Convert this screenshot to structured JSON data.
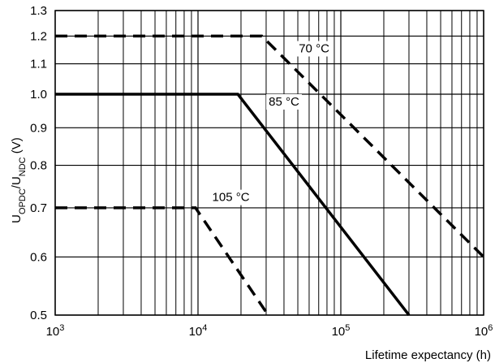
{
  "chart_data": {
    "type": "line",
    "title": "",
    "xlabel": "Lifetime expectancy (h)",
    "ylabel": {
      "base": "U",
      "sub1": "OPDC",
      "mid": "/U",
      "sub2": "NDC",
      "tail": " (V)"
    },
    "x_scale": "log",
    "y_scale": "log",
    "xlim": [
      1000,
      1000000
    ],
    "ylim": [
      0.5,
      1.3
    ],
    "x_ticks": [
      {
        "value": 1000,
        "base": "10",
        "exp": "3"
      },
      {
        "value": 10000,
        "base": "10",
        "exp": "4"
      },
      {
        "value": 100000,
        "base": "10",
        "exp": "5"
      },
      {
        "value": 1000000,
        "base": "10",
        "exp": "6"
      }
    ],
    "y_ticks": [
      {
        "value": 0.5,
        "label": "0.5"
      },
      {
        "value": 0.6,
        "label": "0.6"
      },
      {
        "value": 0.7,
        "label": "0.7"
      },
      {
        "value": 0.8,
        "label": "0.8"
      },
      {
        "value": 0.9,
        "label": "0.9"
      },
      {
        "value": 1.0,
        "label": "1.0"
      },
      {
        "value": 1.1,
        "label": "1.1"
      },
      {
        "value": 1.2,
        "label": "1.2"
      },
      {
        "value": 1.3,
        "label": "1.3"
      }
    ],
    "grid": true,
    "series": [
      {
        "name": "70 °C",
        "style": "dashed",
        "color": "#000000",
        "points": [
          [
            1000,
            1.2
          ],
          [
            28000,
            1.2
          ],
          [
            1000000,
            0.6
          ]
        ],
        "label_at": [
          65000,
          1.14
        ]
      },
      {
        "name": "85 °C",
        "style": "solid",
        "color": "#000000",
        "points": [
          [
            1000,
            1.0
          ],
          [
            19000,
            1.0
          ],
          [
            300000,
            0.5
          ]
        ],
        "label_at": [
          40000,
          0.965
        ]
      },
      {
        "name": "105 °C",
        "style": "dashed",
        "color": "#000000",
        "points": [
          [
            1000,
            0.7
          ],
          [
            9600,
            0.7
          ],
          [
            31000,
            0.5
          ]
        ],
        "label_at": [
          17000,
          0.715
        ]
      }
    ]
  }
}
